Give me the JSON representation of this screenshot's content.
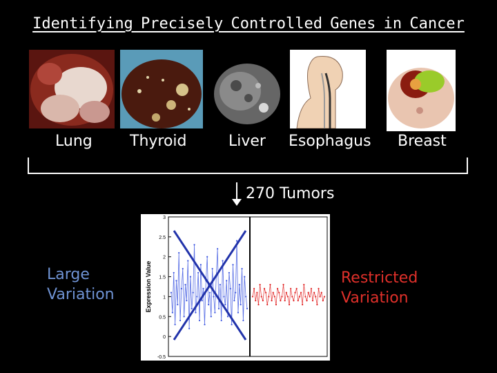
{
  "title": "Identifying Precisely Controlled Genes in Cancer",
  "organs": [
    "Lung",
    "Thyroid",
    "Liver",
    "Esophagus",
    "Breast"
  ],
  "tumor_label": "270 Tumors",
  "left_label": [
    "Large",
    "Variation"
  ],
  "right_label": [
    "Restricted",
    "Variation"
  ],
  "colors": {
    "left_label": "#6f93d4",
    "right_label": "#e0302a",
    "blue_series": "#3b55e0",
    "red_series": "#e02020",
    "cross": "#2233aa"
  },
  "plot": {
    "ylabel": "Expression Value",
    "yticks": [
      "3",
      "2.5",
      "2",
      "1.5",
      "1",
      "0.5",
      "0",
      "-0.5"
    ]
  },
  "chart_data": {
    "type": "line",
    "ylabel": "Expression Value",
    "ylim": [
      -0.5,
      3
    ],
    "yticks": [
      3,
      2.5,
      2,
      1.5,
      1,
      0.5,
      0,
      -0.5
    ],
    "series": [
      {
        "values": [
          1.1,
          0.6,
          1.6,
          0.3,
          1.4,
          0.8,
          2.1,
          0.4,
          1.2,
          1.7,
          0.5,
          1.3,
          0.9,
          1.9,
          0.2,
          1.5,
          0.7,
          1.1,
          2.3,
          0.6,
          1.0,
          1.6,
          0.4,
          1.8,
          0.9,
          1.2,
          0.3,
          1.4,
          2.0,
          0.8,
          1.1,
          0.5,
          1.7,
          1.0,
          0.6,
          1.5,
          2.2,
          0.7,
          1.3,
          0.4,
          1.9,
          1.0,
          0.8,
          1.4,
          0.5,
          1.6,
          1.2,
          0.3,
          1.8,
          0.9,
          1.1,
          2.4,
          0.6,
          1.3,
          0.8,
          1.7,
          0.4,
          1.5,
          1.0,
          0.7
        ]
      },
      {
        "values": [
          1.0,
          1.2,
          0.9,
          1.1,
          0.8,
          1.3,
          1.0,
          0.9,
          1.2,
          1.1,
          0.8,
          1.0,
          1.3,
          0.9,
          1.1,
          1.0,
          0.8,
          1.2,
          1.1,
          0.9,
          1.0,
          1.3,
          0.9,
          1.1,
          1.0,
          0.8,
          1.2,
          1.0,
          0.9,
          1.1,
          1.2,
          0.9,
          1.0,
          1.1,
          0.8,
          1.3,
          1.0,
          0.9,
          1.1,
          1.0,
          1.2,
          0.9,
          1.1,
          1.0,
          0.8,
          1.2,
          1.0,
          1.1,
          0.9,
          1.0
        ]
      }
    ]
  }
}
